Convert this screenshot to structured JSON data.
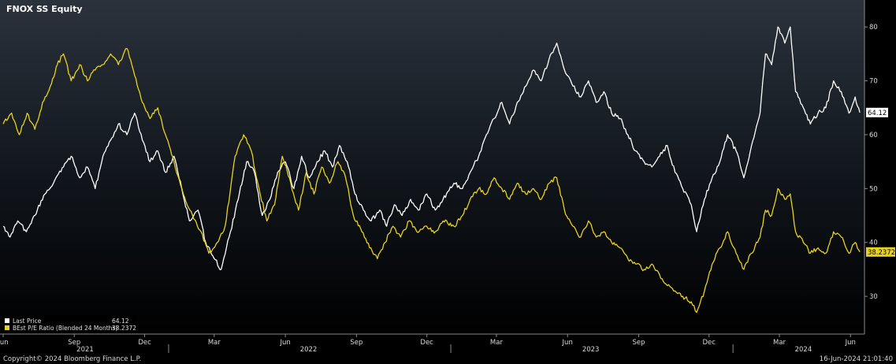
{
  "header": {
    "title": "FNOX SS Equity"
  },
  "footer": {
    "copyright": "Copyright© 2024 Bloomberg Finance L.P.",
    "timestamp": "16-Jun-2024 21:01:40"
  },
  "colors": {
    "background_top": "#2b323c",
    "background_bottom": "#000000",
    "price": "#ffffff",
    "pe": "#e8d21d"
  },
  "chart_data": {
    "type": "line",
    "title": "FNOX SS Equity",
    "ylim": [
      23,
      85
    ],
    "y_ticks": [
      30,
      40,
      50,
      60,
      70,
      80
    ],
    "x_range": [
      "2021-06-01",
      "2024-06-16"
    ],
    "x_ticks": [
      {
        "date": "2021-06-01",
        "label": "Jun"
      },
      {
        "date": "2021-09-01",
        "label": "Sep"
      },
      {
        "date": "2021-12-01",
        "label": "Dec"
      },
      {
        "date": "2022-03-01",
        "label": "Mar"
      },
      {
        "date": "2022-06-01",
        "label": "Jun"
      },
      {
        "date": "2022-09-01",
        "label": "Sep"
      },
      {
        "date": "2022-12-01",
        "label": "Dec"
      },
      {
        "date": "2023-03-01",
        "label": "Mar"
      },
      {
        "date": "2023-06-01",
        "label": "Jun"
      },
      {
        "date": "2023-09-01",
        "label": "Sep"
      },
      {
        "date": "2023-12-01",
        "label": "Dec"
      },
      {
        "date": "2024-03-01",
        "label": "Mar"
      },
      {
        "date": "2024-06-01",
        "label": "Jun"
      }
    ],
    "years": [
      {
        "label": "2021",
        "date": "2021-09-15"
      },
      {
        "label": "2022",
        "date": "2022-07-01"
      },
      {
        "label": "2023",
        "date": "2023-07-01"
      },
      {
        "label": "2024",
        "date": "2024-04-01"
      }
    ],
    "year_dividers": [
      "2022-01-01",
      "2023-01-01",
      "2024-01-01"
    ],
    "grid": false,
    "legend_position": "bottom-left",
    "series": [
      {
        "name": "Last Price",
        "legend_value": "64.12",
        "last_label": "64.12",
        "color": "#ffffff",
        "points": [
          [
            "2021-06-01",
            43
          ],
          [
            "2021-06-10",
            41
          ],
          [
            "2021-06-20",
            44
          ],
          [
            "2021-07-01",
            42
          ],
          [
            "2021-07-12",
            45
          ],
          [
            "2021-07-25",
            49
          ],
          [
            "2021-08-05",
            51
          ],
          [
            "2021-08-18",
            54
          ],
          [
            "2021-08-28",
            56
          ],
          [
            "2021-09-08",
            52
          ],
          [
            "2021-09-18",
            54
          ],
          [
            "2021-09-28",
            50
          ],
          [
            "2021-10-08",
            56
          ],
          [
            "2021-10-18",
            59
          ],
          [
            "2021-10-28",
            62
          ],
          [
            "2021-11-08",
            60
          ],
          [
            "2021-11-18",
            64
          ],
          [
            "2021-11-28",
            59
          ],
          [
            "2021-12-08",
            55
          ],
          [
            "2021-12-18",
            57
          ],
          [
            "2021-12-28",
            53
          ],
          [
            "2022-01-08",
            56
          ],
          [
            "2022-01-18",
            50
          ],
          [
            "2022-01-28",
            44
          ],
          [
            "2022-02-08",
            46
          ],
          [
            "2022-02-18",
            40
          ],
          [
            "2022-03-01",
            37
          ],
          [
            "2022-03-10",
            35
          ],
          [
            "2022-03-22",
            42
          ],
          [
            "2022-04-01",
            48
          ],
          [
            "2022-04-12",
            55
          ],
          [
            "2022-04-22",
            53
          ],
          [
            "2022-05-02",
            45
          ],
          [
            "2022-05-12",
            48
          ],
          [
            "2022-05-22",
            53
          ],
          [
            "2022-06-01",
            55
          ],
          [
            "2022-06-12",
            50
          ],
          [
            "2022-06-22",
            56
          ],
          [
            "2022-07-02",
            52
          ],
          [
            "2022-07-12",
            55
          ],
          [
            "2022-07-22",
            57
          ],
          [
            "2022-08-01",
            54
          ],
          [
            "2022-08-10",
            58
          ],
          [
            "2022-08-20",
            55
          ],
          [
            "2022-08-30",
            49
          ],
          [
            "2022-09-10",
            46
          ],
          [
            "2022-09-20",
            44
          ],
          [
            "2022-10-01",
            46
          ],
          [
            "2022-10-10",
            43
          ],
          [
            "2022-10-20",
            47
          ],
          [
            "2022-10-30",
            45
          ],
          [
            "2022-11-10",
            48
          ],
          [
            "2022-11-20",
            46
          ],
          [
            "2022-12-01",
            49
          ],
          [
            "2022-12-12",
            46
          ],
          [
            "2022-12-22",
            48
          ],
          [
            "2023-01-05",
            51
          ],
          [
            "2023-01-16",
            50
          ],
          [
            "2023-01-26",
            53
          ],
          [
            "2023-02-06",
            56
          ],
          [
            "2023-02-16",
            60
          ],
          [
            "2023-02-26",
            63
          ],
          [
            "2023-03-08",
            66
          ],
          [
            "2023-03-18",
            62
          ],
          [
            "2023-03-28",
            66
          ],
          [
            "2023-04-08",
            69
          ],
          [
            "2023-04-18",
            72
          ],
          [
            "2023-04-28",
            70
          ],
          [
            "2023-05-08",
            74
          ],
          [
            "2023-05-18",
            77
          ],
          [
            "2023-05-28",
            72
          ],
          [
            "2023-06-08",
            69
          ],
          [
            "2023-06-18",
            67
          ],
          [
            "2023-06-28",
            70
          ],
          [
            "2023-07-08",
            66
          ],
          [
            "2023-07-18",
            68
          ],
          [
            "2023-07-28",
            64
          ],
          [
            "2023-08-08",
            63
          ],
          [
            "2023-08-18",
            60
          ],
          [
            "2023-08-28",
            57
          ],
          [
            "2023-09-08",
            55
          ],
          [
            "2023-09-18",
            54
          ],
          [
            "2023-09-28",
            56
          ],
          [
            "2023-10-08",
            58
          ],
          [
            "2023-10-18",
            53
          ],
          [
            "2023-10-28",
            50
          ],
          [
            "2023-11-08",
            47
          ],
          [
            "2023-11-15",
            42
          ],
          [
            "2023-11-25",
            48
          ],
          [
            "2023-12-05",
            52
          ],
          [
            "2023-12-15",
            55
          ],
          [
            "2023-12-25",
            60
          ],
          [
            "2024-01-05",
            57
          ],
          [
            "2024-01-15",
            52
          ],
          [
            "2024-01-25",
            58
          ],
          [
            "2024-02-05",
            64
          ],
          [
            "2024-02-12",
            75
          ],
          [
            "2024-02-20",
            73
          ],
          [
            "2024-02-28",
            80
          ],
          [
            "2024-03-08",
            77
          ],
          [
            "2024-03-15",
            80
          ],
          [
            "2024-03-22",
            68
          ],
          [
            "2024-04-01",
            65
          ],
          [
            "2024-04-10",
            62
          ],
          [
            "2024-04-20",
            64
          ],
          [
            "2024-04-30",
            65
          ],
          [
            "2024-05-10",
            70
          ],
          [
            "2024-05-20",
            68
          ],
          [
            "2024-05-30",
            64
          ],
          [
            "2024-06-07",
            67
          ],
          [
            "2024-06-13",
            64.12
          ]
        ]
      },
      {
        "name": "BEst P/E Ratio (Blended 24 Months)",
        "legend_value": "38.2372",
        "last_label": "38.2372",
        "color": "#e8d21d",
        "points": [
          [
            "2021-06-01",
            62
          ],
          [
            "2021-06-12",
            64
          ],
          [
            "2021-06-22",
            60
          ],
          [
            "2021-07-02",
            64
          ],
          [
            "2021-07-12",
            61
          ],
          [
            "2021-07-22",
            66
          ],
          [
            "2021-08-01",
            69
          ],
          [
            "2021-08-10",
            73
          ],
          [
            "2021-08-18",
            75
          ],
          [
            "2021-08-28",
            70
          ],
          [
            "2021-09-08",
            73
          ],
          [
            "2021-09-18",
            70
          ],
          [
            "2021-09-28",
            72
          ],
          [
            "2021-10-08",
            73
          ],
          [
            "2021-10-18",
            75
          ],
          [
            "2021-10-28",
            73
          ],
          [
            "2021-11-08",
            76
          ],
          [
            "2021-11-18",
            71
          ],
          [
            "2021-11-28",
            66
          ],
          [
            "2021-12-08",
            63
          ],
          [
            "2021-12-18",
            65
          ],
          [
            "2021-12-28",
            60
          ],
          [
            "2022-01-08",
            55
          ],
          [
            "2022-01-20",
            49
          ],
          [
            "2022-02-01",
            45
          ],
          [
            "2022-02-12",
            42
          ],
          [
            "2022-02-22",
            38
          ],
          [
            "2022-03-05",
            40
          ],
          [
            "2022-03-15",
            43
          ],
          [
            "2022-03-28",
            56
          ],
          [
            "2022-04-08",
            60
          ],
          [
            "2022-04-18",
            57
          ],
          [
            "2022-04-28",
            50
          ],
          [
            "2022-05-08",
            44
          ],
          [
            "2022-05-18",
            47
          ],
          [
            "2022-05-28",
            56
          ],
          [
            "2022-06-08",
            51
          ],
          [
            "2022-06-18",
            46
          ],
          [
            "2022-06-28",
            53
          ],
          [
            "2022-07-08",
            49
          ],
          [
            "2022-07-18",
            54
          ],
          [
            "2022-07-28",
            51
          ],
          [
            "2022-08-08",
            55
          ],
          [
            "2022-08-18",
            52
          ],
          [
            "2022-08-28",
            45
          ],
          [
            "2022-09-08",
            42
          ],
          [
            "2022-09-18",
            39
          ],
          [
            "2022-09-28",
            37
          ],
          [
            "2022-10-08",
            40
          ],
          [
            "2022-10-18",
            43
          ],
          [
            "2022-10-28",
            41
          ],
          [
            "2022-11-08",
            44
          ],
          [
            "2022-11-18",
            42
          ],
          [
            "2022-12-01",
            43
          ],
          [
            "2022-12-12",
            42
          ],
          [
            "2022-12-22",
            44
          ],
          [
            "2023-01-05",
            43
          ],
          [
            "2023-01-16",
            45
          ],
          [
            "2023-01-26",
            48
          ],
          [
            "2023-02-06",
            50
          ],
          [
            "2023-02-16",
            49
          ],
          [
            "2023-02-26",
            52
          ],
          [
            "2023-03-08",
            50
          ],
          [
            "2023-03-18",
            48
          ],
          [
            "2023-03-28",
            51
          ],
          [
            "2023-04-08",
            49
          ],
          [
            "2023-04-18",
            50
          ],
          [
            "2023-04-28",
            48
          ],
          [
            "2023-05-08",
            51
          ],
          [
            "2023-05-18",
            52
          ],
          [
            "2023-05-28",
            46
          ],
          [
            "2023-06-08",
            43
          ],
          [
            "2023-06-18",
            41
          ],
          [
            "2023-06-28",
            44
          ],
          [
            "2023-07-08",
            41
          ],
          [
            "2023-07-18",
            42
          ],
          [
            "2023-07-28",
            40
          ],
          [
            "2023-08-08",
            39
          ],
          [
            "2023-08-18",
            37
          ],
          [
            "2023-08-28",
            36
          ],
          [
            "2023-09-08",
            35
          ],
          [
            "2023-09-18",
            36
          ],
          [
            "2023-09-28",
            34
          ],
          [
            "2023-10-08",
            32
          ],
          [
            "2023-10-18",
            31
          ],
          [
            "2023-10-28",
            30
          ],
          [
            "2023-11-08",
            29
          ],
          [
            "2023-11-15",
            27
          ],
          [
            "2023-11-25",
            31
          ],
          [
            "2023-12-05",
            36
          ],
          [
            "2023-12-15",
            39
          ],
          [
            "2023-12-25",
            42
          ],
          [
            "2024-01-05",
            38
          ],
          [
            "2024-01-15",
            35
          ],
          [
            "2024-01-25",
            38
          ],
          [
            "2024-02-05",
            41
          ],
          [
            "2024-02-12",
            46
          ],
          [
            "2024-02-20",
            45
          ],
          [
            "2024-02-28",
            50
          ],
          [
            "2024-03-08",
            48
          ],
          [
            "2024-03-15",
            49
          ],
          [
            "2024-03-22",
            42
          ],
          [
            "2024-04-01",
            40
          ],
          [
            "2024-04-10",
            38
          ],
          [
            "2024-04-20",
            39
          ],
          [
            "2024-04-30",
            38
          ],
          [
            "2024-05-10",
            42
          ],
          [
            "2024-05-20",
            41
          ],
          [
            "2024-05-30",
            38
          ],
          [
            "2024-06-07",
            40
          ],
          [
            "2024-06-13",
            38.2372
          ]
        ]
      }
    ]
  }
}
